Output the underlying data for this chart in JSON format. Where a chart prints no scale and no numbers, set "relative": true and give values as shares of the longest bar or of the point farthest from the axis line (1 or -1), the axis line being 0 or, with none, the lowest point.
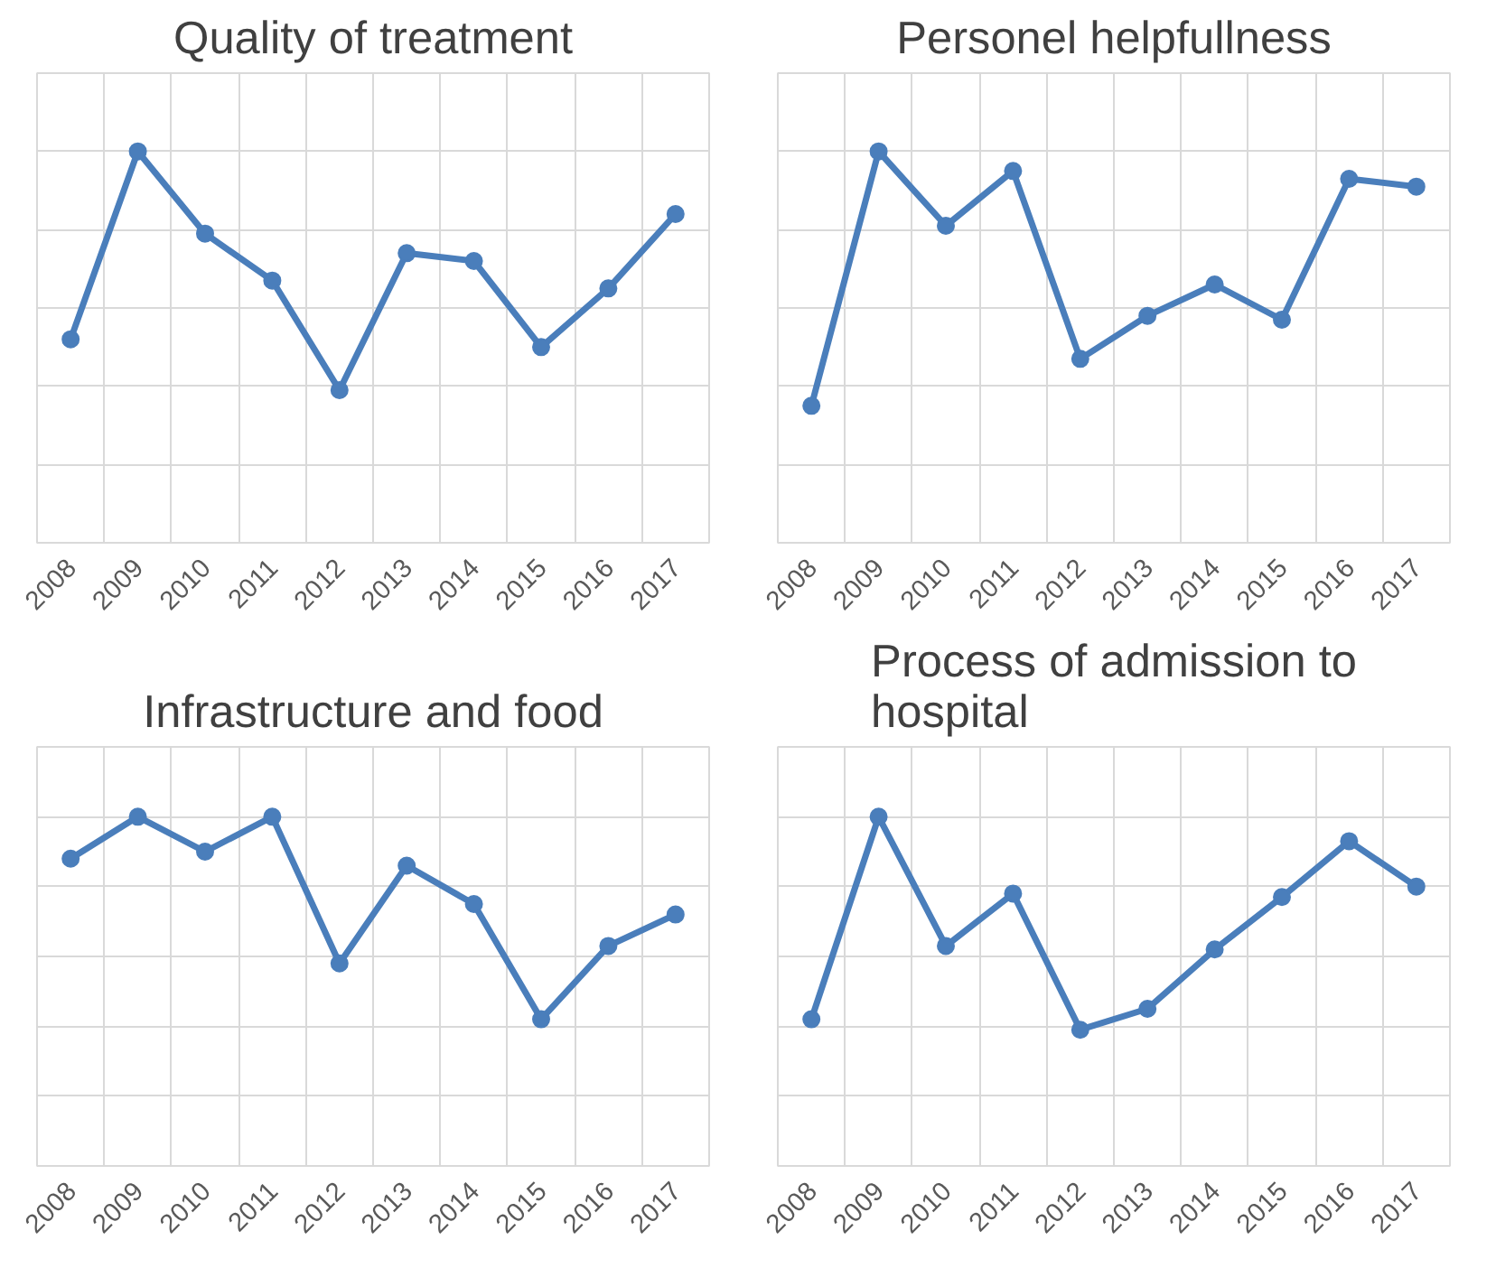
{
  "chart_data": [
    {
      "type": "line",
      "title": "Quality of treatment",
      "relative": true,
      "grid": true,
      "marker": "circle",
      "categories": [
        "2008",
        "2009",
        "2010",
        "2011",
        "2012",
        "2013",
        "2014",
        "2015",
        "2016",
        "2017"
      ],
      "series": [
        {
          "color": "#4a7ebb",
          "values": [
            0.52,
            1,
            0.79,
            0.67,
            0.39,
            0.74,
            0.72,
            0.5,
            0.65,
            0.84
          ]
        }
      ]
    },
    {
      "type": "line",
      "title": "Personel helpfullness",
      "relative": true,
      "grid": true,
      "marker": "circle",
      "categories": [
        "2008",
        "2009",
        "2010",
        "2011",
        "2012",
        "2013",
        "2014",
        "2015",
        "2016",
        "2017"
      ],
      "series": [
        {
          "color": "#4a7ebb",
          "values": [
            0.35,
            1,
            0.81,
            0.95,
            0.47,
            0.58,
            0.66,
            0.57,
            0.93,
            0.91
          ]
        }
      ]
    },
    {
      "type": "line",
      "title": "Infrastructure and food",
      "relative": true,
      "grid": true,
      "marker": "circle",
      "categories": [
        "2008",
        "2009",
        "2010",
        "2011",
        "2012",
        "2013",
        "2014",
        "2015",
        "2016",
        "2017"
      ],
      "series": [
        {
          "color": "#4a7ebb",
          "values": [
            0.88,
            1,
            0.9,
            1,
            0.58,
            0.86,
            0.75,
            0.42,
            0.63,
            0.72
          ]
        }
      ]
    },
    {
      "type": "line",
      "title": "Process of admission to hospital",
      "relative": true,
      "grid": true,
      "marker": "circle",
      "categories": [
        "2008",
        "2009",
        "2010",
        "2011",
        "2012",
        "2013",
        "2014",
        "2015",
        "2016",
        "2017"
      ],
      "series": [
        {
          "color": "#4a7ebb",
          "values": [
            0.42,
            1,
            0.63,
            0.78,
            0.39,
            0.45,
            0.62,
            0.77,
            0.93,
            0.8
          ]
        }
      ]
    }
  ]
}
